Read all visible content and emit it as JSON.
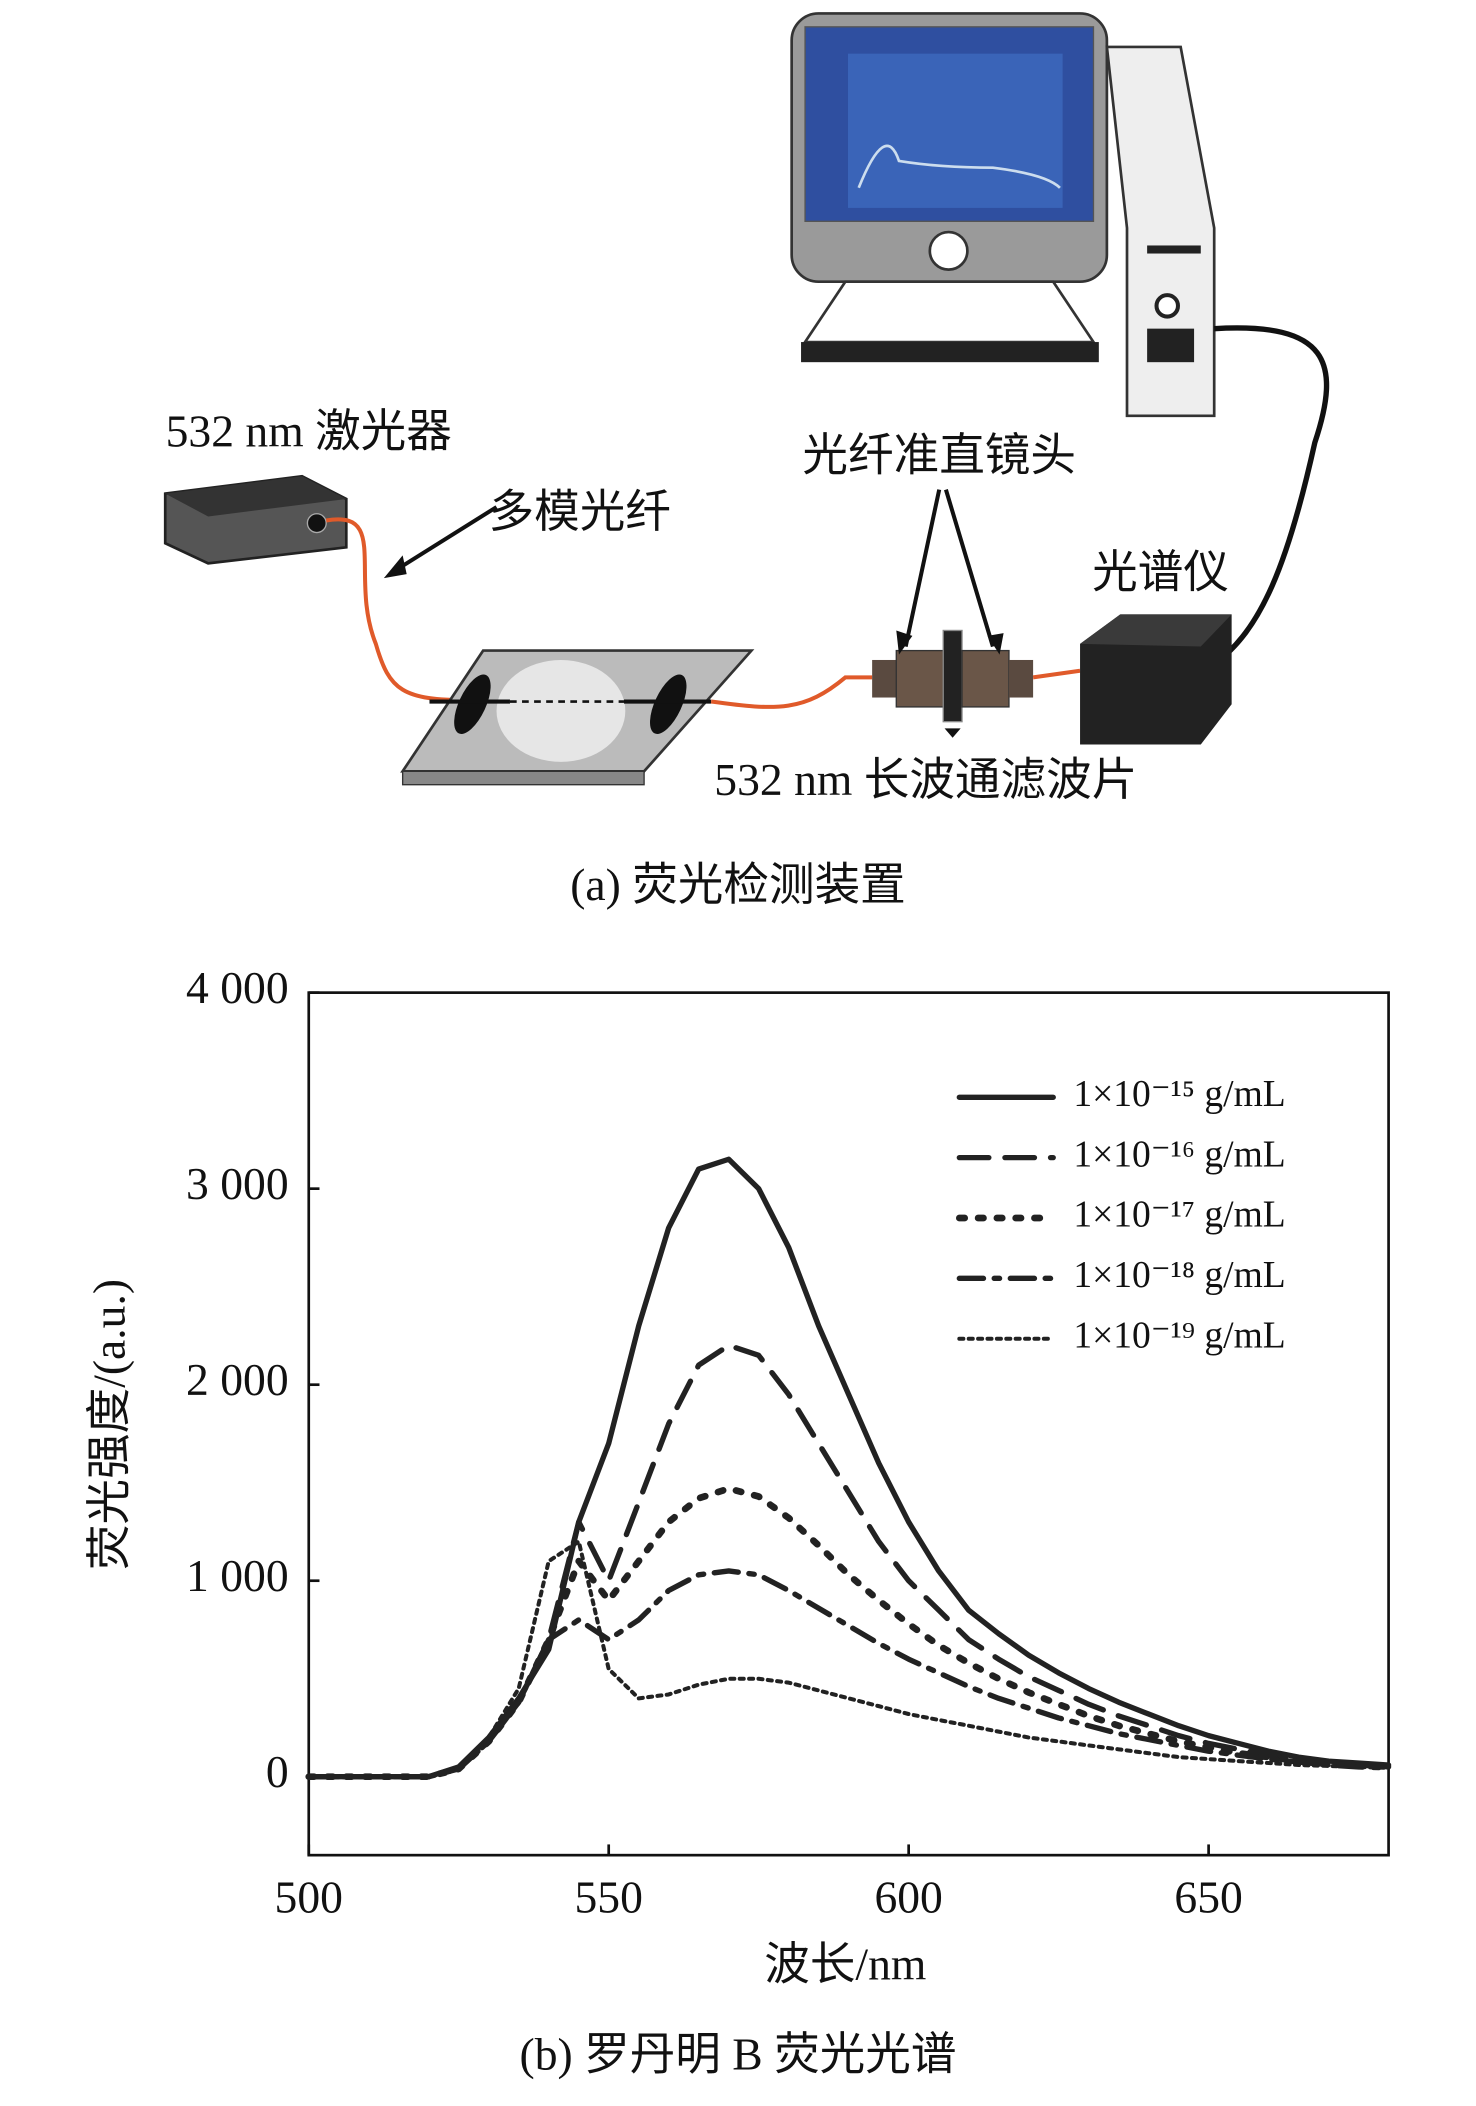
{
  "diagram": {
    "labels": [
      "532 nm 激光器",
      "多模光纤",
      "光纤准直镜头",
      "光谱仪",
      "532 nm 长波通滤波片"
    ],
    "caption": "(a) 荧光检测装置"
  },
  "chart_data": {
    "type": "line",
    "caption": "(b) 罗丹明 B 荧光光谱",
    "x_label": "波长/nm",
    "y_label": "荧光强度/(a.u.)",
    "x": [
      500,
      505,
      510,
      515,
      520,
      525,
      530,
      535,
      540,
      545,
      550,
      555,
      560,
      565,
      570,
      575,
      580,
      585,
      590,
      595,
      600,
      605,
      610,
      615,
      620,
      625,
      630,
      635,
      640,
      645,
      650,
      655,
      660,
      665,
      670,
      675,
      680
    ],
    "series": [
      {
        "name": "1×10⁻¹⁵ g/mL",
        "color": "#222222",
        "style": "solid",
        "values": [
          0,
          0,
          0,
          0,
          0,
          50,
          200,
          400,
          650,
          1300,
          1700,
          2300,
          2800,
          3100,
          3150,
          3000,
          2700,
          2300,
          1950,
          1600,
          1300,
          1050,
          850,
          730,
          620,
          530,
          450,
          380,
          320,
          260,
          210,
          170,
          130,
          100,
          80,
          70,
          60
        ]
      },
      {
        "name": "1×10⁻¹⁶ g/mL",
        "color": "#222222",
        "style": "dashed",
        "values": [
          0,
          0,
          0,
          0,
          0,
          40,
          180,
          380,
          700,
          1300,
          1000,
          1400,
          1800,
          2100,
          2200,
          2150,
          1950,
          1700,
          1450,
          1200,
          1000,
          850,
          700,
          600,
          510,
          440,
          370,
          310,
          260,
          210,
          170,
          140,
          110,
          90,
          70,
          60,
          50
        ]
      },
      {
        "name": "1×10⁻¹⁷ g/mL",
        "color": "#222222",
        "style": "dotted",
        "values": [
          0,
          0,
          0,
          0,
          0,
          40,
          180,
          380,
          700,
          1100,
          900,
          1100,
          1300,
          1420,
          1470,
          1430,
          1320,
          1180,
          1030,
          900,
          780,
          670,
          580,
          500,
          430,
          370,
          310,
          260,
          220,
          180,
          150,
          120,
          100,
          80,
          65,
          55,
          50
        ]
      },
      {
        "name": "1×10⁻¹⁸ g/mL",
        "color": "#222222",
        "style": "dashdot",
        "values": [
          0,
          0,
          0,
          0,
          0,
          40,
          180,
          380,
          700,
          800,
          700,
          800,
          950,
          1030,
          1050,
          1030,
          950,
          860,
          770,
          680,
          600,
          530,
          460,
          400,
          350,
          300,
          260,
          220,
          190,
          160,
          130,
          110,
          90,
          75,
          60,
          50,
          45
        ]
      },
      {
        "name": "1×10⁻¹⁹ g/mL",
        "color": "#222222",
        "style": "finedot",
        "values": [
          0,
          0,
          0,
          0,
          0,
          40,
          200,
          450,
          1100,
          1200,
          550,
          400,
          420,
          470,
          500,
          500,
          480,
          440,
          400,
          360,
          320,
          290,
          260,
          230,
          200,
          180,
          160,
          140,
          120,
          100,
          90,
          80,
          70,
          60,
          55,
          50,
          45
        ]
      }
    ],
    "xlim": [
      500,
      680
    ],
    "xticks": [
      500,
      550,
      600,
      650
    ],
    "ylim": [
      -400,
      4000
    ],
    "yticks": [
      0,
      {
        "value": 1000,
        "label": "1 000"
      },
      {
        "value": 2000,
        "label": "2 000"
      },
      {
        "value": 3000,
        "label": "3 000"
      },
      {
        "value": 4000,
        "label": "4 000"
      }
    ],
    "legend": "upper right"
  }
}
